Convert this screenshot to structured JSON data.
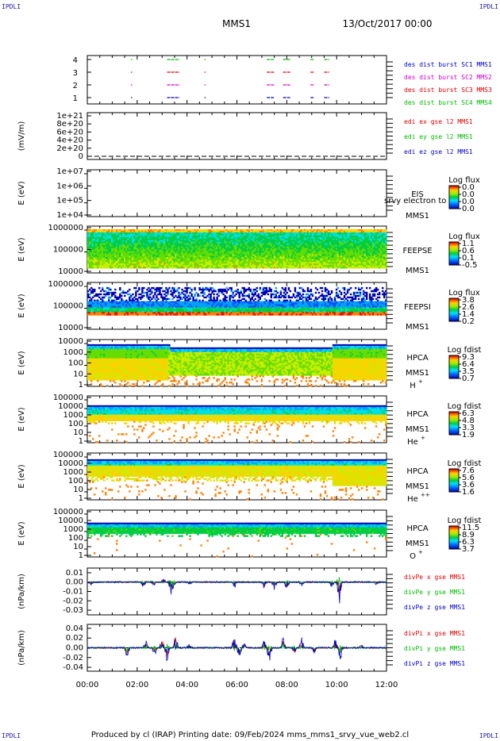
{
  "header": {
    "mission": "MMS1",
    "date": "13/Oct/2017 00:00",
    "corner_label": "IPDLI"
  },
  "footer": {
    "text": "Produced by cl (IRAP)    Printing date: 09/Feb/2024    mms_mms1_srvy_vue_web2.cl"
  },
  "time_axis": {
    "ticks": [
      "00:00",
      "02:00",
      "04:00",
      "06:00",
      "08:00",
      "10:00",
      "12:00"
    ],
    "range_hours": [
      0,
      12
    ]
  },
  "colors": {
    "mms1": "#0000cc",
    "mms2": "#cc00cc",
    "mms3": "#dd0000",
    "mms4": "#00bb00",
    "x_component": "#dd0000",
    "y_component": "#00bb00",
    "z_component": "#0000cc"
  },
  "chart_data": [
    {
      "type": "scatter",
      "panel": "burst",
      "yticks": [
        "1",
        "2",
        "3",
        "4"
      ],
      "legend": [
        {
          "label": "des dist burst SC1 MMS1",
          "color": "#0000cc"
        },
        {
          "label": "des dist burst SC2 MMS2",
          "color": "#cc00cc"
        },
        {
          "label": "des dist burst SC3 MMS3",
          "color": "#dd0000"
        },
        {
          "label": "des dist burst SC4 MMS4",
          "color": "#00bb00"
        }
      ],
      "intervals_hours": [
        [
          1.75,
          1.8
        ],
        [
          3.2,
          3.7
        ],
        [
          4.7,
          4.75
        ],
        [
          7.2,
          7.5
        ],
        [
          7.85,
          8.15
        ],
        [
          8.95,
          9.1
        ],
        [
          9.5,
          9.7
        ]
      ]
    },
    {
      "type": "line",
      "panel": "edi",
      "ylabel": "(mV/m)",
      "yticks": [
        "0",
        "2e+20",
        "4e+20",
        "6e+20",
        "8e+20",
        "1e+21"
      ],
      "legend": [
        {
          "label": "edi ex gse l2 MMS1",
          "color": "#dd0000"
        },
        {
          "label": "edi ey gse l2 MMS1",
          "color": "#00bb00"
        },
        {
          "label": "edi ez gse l2 MMS1",
          "color": "#0000cc"
        }
      ]
    },
    {
      "type": "heatmap",
      "panel": "eis",
      "ylabel": "E (eV)",
      "yticks": [
        "1e+07",
        "1e+06",
        "1e+05",
        "1e+04"
      ],
      "labels": [
        "EIS",
        "MMS1"
      ],
      "overlap_text": "srvy electron to",
      "colorbar": {
        "title": "Log flux",
        "ticks": [
          "0.0",
          "0.0",
          "0.0",
          "0.0"
        ]
      }
    },
    {
      "type": "heatmap",
      "panel": "feeps_e",
      "ylabel": "E (eV)",
      "yticks": [
        "1000000",
        "100000",
        "10000"
      ],
      "labels": [
        "FEEPSE",
        "MMS1"
      ],
      "colorbar": {
        "title": "Log flux",
        "ticks": [
          "1.1",
          "0.6",
          "0.1",
          "-0.5"
        ]
      }
    },
    {
      "type": "heatmap",
      "panel": "feeps_i",
      "ylabel": "E (eV)",
      "yticks": [
        "1000000",
        "100000",
        "10000"
      ],
      "labels": [
        "FEEPSI",
        "MMS1"
      ],
      "colorbar": {
        "title": "Log flux",
        "ticks": [
          "3.8",
          "2.6",
          "1.4",
          "0.2"
        ]
      }
    },
    {
      "type": "heatmap",
      "panel": "hpca_h",
      "ylabel": "E (eV)",
      "yticks": [
        "10000",
        "1000",
        "100",
        "10",
        "1"
      ],
      "labels": [
        "HPCA",
        "MMS1"
      ],
      "species": "H",
      "species_sup": "+",
      "colorbar": {
        "title": "Log fdist",
        "ticks": [
          "9.3",
          "6.4",
          "3.5",
          "0.7"
        ]
      }
    },
    {
      "type": "heatmap",
      "panel": "hpca_he",
      "ylabel": "E (eV)",
      "yticks": [
        "100000",
        "10000",
        "1000",
        "100",
        "10",
        "1"
      ],
      "labels": [
        "HPCA",
        "MMS1"
      ],
      "species": "He",
      "species_sup": "+",
      "colorbar": {
        "title": "Log fdist",
        "ticks": [
          "6.3",
          "4.8",
          "3.3",
          "1.9"
        ]
      }
    },
    {
      "type": "heatmap",
      "panel": "hpca_hepp",
      "ylabel": "E (eV)",
      "yticks": [
        "100000",
        "10000",
        "1000",
        "100",
        "10",
        "1"
      ],
      "labels": [
        "HPCA",
        "MMS1"
      ],
      "species": "He",
      "species_sup": "++",
      "colorbar": {
        "title": "Log fdist",
        "ticks": [
          "7.6",
          "5.6",
          "3.6",
          "1.6"
        ]
      }
    },
    {
      "type": "heatmap",
      "panel": "hpca_o",
      "ylabel": "E (eV)",
      "yticks": [
        "100000",
        "10000",
        "1000",
        "100",
        "10",
        "1"
      ],
      "labels": [
        "HPCA",
        "MMS1"
      ],
      "species": "O",
      "species_sup": "+",
      "colorbar": {
        "title": "Log fdist",
        "ticks": [
          "11.5",
          "8.9",
          "6.3",
          "3.7"
        ]
      }
    },
    {
      "type": "line",
      "panel": "divpe",
      "ylabel": "(nPa/km)",
      "yticks": [
        "0.01",
        "0.00",
        "-0.01",
        "-0.02",
        "-0.03"
      ],
      "ylim": [
        -0.035,
        0.015
      ],
      "legend": [
        {
          "label": "divPe x gse MMS1",
          "color": "#dd0000"
        },
        {
          "label": "divPe y gse MMS1",
          "color": "#00bb00"
        },
        {
          "label": "divPe z gse MMS1",
          "color": "#0000cc"
        }
      ],
      "spikes": [
        [
          0.15,
          -0.004
        ],
        [
          2.25,
          -0.006
        ],
        [
          2.65,
          -0.005
        ],
        [
          3.05,
          0.004
        ],
        [
          3.35,
          -0.012
        ],
        [
          3.45,
          -0.009
        ],
        [
          4.1,
          -0.003
        ],
        [
          5.9,
          -0.006
        ],
        [
          7.1,
          -0.007
        ],
        [
          7.5,
          -0.008
        ],
        [
          8.0,
          -0.01
        ],
        [
          8.6,
          -0.004
        ],
        [
          9.8,
          -0.005
        ],
        [
          10.1,
          -0.028
        ],
        [
          11.6,
          -0.003
        ]
      ]
    },
    {
      "type": "line",
      "panel": "divpi",
      "ylabel": "(nPa/km)",
      "yticks": [
        "0.04",
        "0.02",
        "0.00",
        "-0.02",
        "-0.04"
      ],
      "ylim": [
        -0.048,
        0.048
      ],
      "legend": [
        {
          "label": "divPi x gse MMS1",
          "color": "#dd0000"
        },
        {
          "label": "divPi y gse MMS1",
          "color": "#00bb00"
        },
        {
          "label": "divPi z gse MMS1",
          "color": "#0000cc"
        }
      ],
      "spikes": [
        [
          1.6,
          -0.02
        ],
        [
          2.35,
          0.015
        ],
        [
          2.7,
          -0.018
        ],
        [
          3.0,
          0.02
        ],
        [
          3.2,
          -0.032
        ],
        [
          3.55,
          0.03
        ],
        [
          4.1,
          0.01
        ],
        [
          5.9,
          0.025
        ],
        [
          6.1,
          -0.02
        ],
        [
          6.3,
          0.01
        ],
        [
          7.1,
          0.02
        ],
        [
          7.3,
          -0.03
        ],
        [
          7.85,
          0.022
        ],
        [
          8.3,
          -0.015
        ],
        [
          8.6,
          0.02
        ],
        [
          9.1,
          -0.012
        ],
        [
          9.95,
          0.02
        ],
        [
          10.15,
          -0.025
        ],
        [
          11.0,
          0.008
        ]
      ]
    }
  ]
}
